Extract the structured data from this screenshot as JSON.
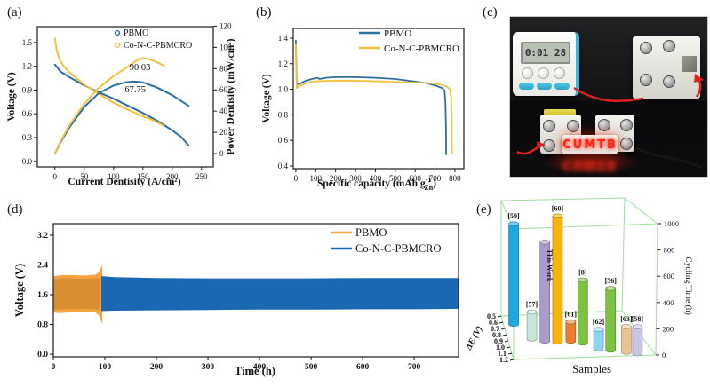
{
  "panels": {
    "a": {
      "label": "(a)"
    },
    "b": {
      "label": "(b)"
    },
    "c": {
      "label": "(c)",
      "timer_display": "0:01 28",
      "led_text": "CUMTB"
    },
    "d": {
      "label": "(d)"
    },
    "e": {
      "label": "(e)"
    }
  },
  "colors": {
    "pbmo_blue": "#2e6f9e",
    "co_n_c_yellow": "#f2c23e",
    "cycling_orange": "#f5a440",
    "cycling_orange_core": "#d98e2f",
    "cycling_blue": "#1a67b4",
    "frame_green": "#9ede9b"
  },
  "chart_data": [
    {
      "id": "a",
      "type": "line",
      "xlabel": "Current Dentisity (A/cm²)",
      "x_ticks": [
        0,
        50,
        100,
        150,
        200,
        250
      ],
      "x_range": [
        -30,
        270
      ],
      "y_left": {
        "label": "Voltage (V)",
        "ticks": [
          "0.0",
          "0.3",
          "0.6",
          "0.9",
          "1.2",
          "1.5"
        ],
        "range": [
          -0.07,
          1.7
        ]
      },
      "y_right": {
        "label": "Power Dentisity (mW/cm²)",
        "ticks": [
          0,
          20,
          40,
          60,
          80,
          100,
          120
        ],
        "range": [
          -12.5,
          119.5
        ]
      },
      "legend": [
        {
          "name": "PBMO",
          "color": "#2e6f9e"
        },
        {
          "name": "Co-N-C-PBMCRO",
          "color": "#f2c23e"
        }
      ],
      "annotations": [
        {
          "text": "90.03",
          "x": 145,
          "y": 1.15
        },
        {
          "text": "67.75",
          "x": 137,
          "y": 0.87
        }
      ],
      "series": [
        {
          "name": "PBMO voltage",
          "axis": "left",
          "color": "#2e6f9e",
          "points": [
            [
              0,
              1.22
            ],
            [
              10,
              1.13
            ],
            [
              25,
              1.06
            ],
            [
              50,
              0.96
            ],
            [
              75,
              0.87
            ],
            [
              100,
              0.79
            ],
            [
              125,
              0.7
            ],
            [
              150,
              0.61
            ],
            [
              175,
              0.51
            ],
            [
              200,
              0.39
            ],
            [
              215,
              0.31
            ],
            [
              228,
              0.2
            ]
          ]
        },
        {
          "name": "Co-N-C-PBMCRO voltage",
          "axis": "left",
          "color": "#f2c23e",
          "points": [
            [
              0,
              1.55
            ],
            [
              3,
              1.4
            ],
            [
              8,
              1.28
            ],
            [
              15,
              1.2
            ],
            [
              25,
              1.12
            ],
            [
              50,
              0.97
            ],
            [
              75,
              0.85
            ],
            [
              100,
              0.74
            ],
            [
              125,
              0.65
            ],
            [
              150,
              0.57
            ],
            [
              170,
              0.51
            ],
            [
              185,
              0.45
            ]
          ]
        },
        {
          "name": "PBMO power",
          "axis": "right",
          "color": "#2e6f9e",
          "points": [
            [
              0,
              0
            ],
            [
              10,
              11
            ],
            [
              25,
              25
            ],
            [
              50,
              44
            ],
            [
              75,
              57
            ],
            [
              100,
              64
            ],
            [
              120,
              67
            ],
            [
              135,
              67.75
            ],
            [
              150,
              67
            ],
            [
              175,
              62
            ],
            [
              200,
              55
            ],
            [
              228,
              45
            ]
          ]
        },
        {
          "name": "Co-N-C-PBMCRO power",
          "axis": "right",
          "color": "#f2c23e",
          "points": [
            [
              0,
              0
            ],
            [
              10,
              12
            ],
            [
              25,
              27
            ],
            [
              50,
              47
            ],
            [
              75,
              62
            ],
            [
              100,
              73
            ],
            [
              125,
              82
            ],
            [
              140,
              88
            ],
            [
              150,
              90.03
            ],
            [
              160,
              89
            ],
            [
              170,
              87
            ],
            [
              185,
              83
            ]
          ]
        }
      ]
    },
    {
      "id": "b",
      "type": "line",
      "xlabel_rich": [
        {
          "t": "Specific capacity (mAh g"
        },
        {
          "t": "-1",
          "s": "sup"
        },
        {
          "t": "Zn",
          "s": "sub"
        },
        {
          "t": ")"
        }
      ],
      "x_ticks": [
        0,
        100,
        200,
        300,
        400,
        500,
        600,
        700,
        800
      ],
      "x_range": [
        -13,
        845
      ],
      "y_left": {
        "label": "Voltage (V)",
        "ticks": [
          "0.4",
          "0.6",
          "0.8",
          "1.0",
          "1.2",
          "1.4"
        ],
        "range": [
          0.379,
          1.476
        ]
      },
      "legend": [
        {
          "name": "PBMO",
          "color": "#2e6f9e"
        },
        {
          "name": "Co-N-C-PBMCRO",
          "color": "#f2c23e"
        }
      ],
      "series": [
        {
          "name": "PBMO",
          "axis": "left",
          "color": "#2e6f9e",
          "points": [
            [
              0,
              1.38
            ],
            [
              2,
              1.2
            ],
            [
              5,
              1.04
            ],
            [
              15,
              1.04
            ],
            [
              40,
              1.06
            ],
            [
              80,
              1.08
            ],
            [
              110,
              1.09
            ],
            [
              120,
              1.08
            ],
            [
              150,
              1.09
            ],
            [
              200,
              1.095
            ],
            [
              300,
              1.095
            ],
            [
              400,
              1.09
            ],
            [
              500,
              1.08
            ],
            [
              600,
              1.06
            ],
            [
              650,
              1.05
            ],
            [
              700,
              1.03
            ],
            [
              735,
              1.01
            ],
            [
              748,
              0.99
            ],
            [
              752,
              0.9
            ],
            [
              755,
              0.7
            ],
            [
              756,
              0.49
            ]
          ]
        },
        {
          "name": "Co-N-C-PBMCRO",
          "axis": "left",
          "color": "#f2c23e",
          "points": [
            [
              0,
              1.35
            ],
            [
              2,
              1.15
            ],
            [
              5,
              1.01
            ],
            [
              15,
              1.02
            ],
            [
              40,
              1.04
            ],
            [
              80,
              1.06
            ],
            [
              150,
              1.065
            ],
            [
              250,
              1.068
            ],
            [
              350,
              1.065
            ],
            [
              450,
              1.06
            ],
            [
              550,
              1.055
            ],
            [
              650,
              1.05
            ],
            [
              720,
              1.04
            ],
            [
              760,
              1.02
            ],
            [
              775,
              1.0
            ],
            [
              781,
              0.93
            ],
            [
              784,
              0.75
            ],
            [
              785,
              0.5
            ]
          ]
        }
      ]
    },
    {
      "id": "d",
      "type": "band",
      "xlabel": "Time (h)",
      "x_ticks": [
        0,
        100,
        200,
        300,
        400,
        500,
        600,
        700
      ],
      "x_range": [
        0,
        786
      ],
      "y_left": {
        "label": "Voltage (V)",
        "ticks": [
          "0.0",
          "0.8",
          "1.6",
          "2.4",
          "3.2"
        ],
        "range": [
          -0.07,
          3.51
        ]
      },
      "legend": [
        {
          "name": "PBMO",
          "color": "#f5a440"
        },
        {
          "name": "Co-N-C-PBMCRO",
          "color": "#1a67b4"
        }
      ],
      "bands": [
        {
          "name": "PBMO",
          "fill": "#f5a440",
          "x": [
            1,
            10,
            30,
            50,
            70,
            82,
            88,
            92,
            95
          ],
          "top": [
            2.1,
            2.12,
            2.13,
            2.12,
            2.12,
            2.14,
            2.2,
            2.32,
            2.4
          ],
          "bottom": [
            1.12,
            1.11,
            1.12,
            1.13,
            1.14,
            1.12,
            1.05,
            0.93,
            0.8
          ]
        },
        {
          "name": "PBMO core",
          "fill": "#d98e2f",
          "x": [
            1,
            30,
            60,
            90
          ],
          "top": [
            2.02,
            2.04,
            2.03,
            2.05
          ],
          "bottom": [
            1.2,
            1.21,
            1.22,
            1.2
          ]
        },
        {
          "name": "Co-N-C-PBMCRO",
          "fill": "#1a67b4",
          "x": [
            93,
            120,
            200,
            300,
            400,
            500,
            600,
            700,
            786
          ],
          "top": [
            2.1,
            2.07,
            2.05,
            2.04,
            2.04,
            2.04,
            2.05,
            2.05,
            2.05
          ],
          "bottom": [
            1.16,
            1.17,
            1.18,
            1.19,
            1.2,
            1.2,
            1.21,
            1.21,
            1.22
          ]
        }
      ]
    },
    {
      "id": "e",
      "type": "bar3d",
      "xlabel": "Samples",
      "delta_e_axis": {
        "label": "ΔE (V)",
        "ticks": [
          "0.5",
          "0.6",
          "0.7",
          "0.8",
          "0.9",
          "1.0",
          "1.1",
          "1.2"
        ]
      },
      "cycling_axis": {
        "label": "Cycling Time (h)",
        "ticks": [
          0,
          200,
          400,
          600,
          800,
          1000
        ],
        "range": [
          0,
          1000
        ]
      },
      "samples": [
        {
          "ref": "[59]",
          "color": "#1fa8e0",
          "cycling_time_h": 780,
          "delta_E_V": 0.6
        },
        {
          "ref": "[57]",
          "color": "#c3e8da",
          "cycling_time_h": 210,
          "delta_E_V": 0.65
        },
        {
          "ref": "This Work",
          "color": "#a79bd0",
          "cycling_time_h": 770,
          "delta_E_V": 0.7,
          "highlight": true
        },
        {
          "ref": "[60]",
          "color": "#f6b40c",
          "cycling_time_h": 980,
          "delta_E_V": 0.75
        },
        {
          "ref": "[61]",
          "color": "#ec7d2e",
          "cycling_time_h": 150,
          "delta_E_V": 0.78
        },
        {
          "ref": "[8]",
          "color": "#7cc243",
          "cycling_time_h": 490,
          "delta_E_V": 0.8
        },
        {
          "ref": "[62]",
          "color": "#8fd3f2",
          "cycling_time_h": 150,
          "delta_E_V": 0.88
        },
        {
          "ref": "[56]",
          "color": "#7cc243",
          "cycling_time_h": 480,
          "delta_E_V": 0.85
        },
        {
          "ref": "[63]",
          "color": "#eac394",
          "cycling_time_h": 200,
          "delta_E_V": 0.95
        },
        {
          "ref": "[58]",
          "color": "#c8c5e6",
          "cycling_time_h": 210,
          "delta_E_V": 1.0
        }
      ]
    }
  ]
}
